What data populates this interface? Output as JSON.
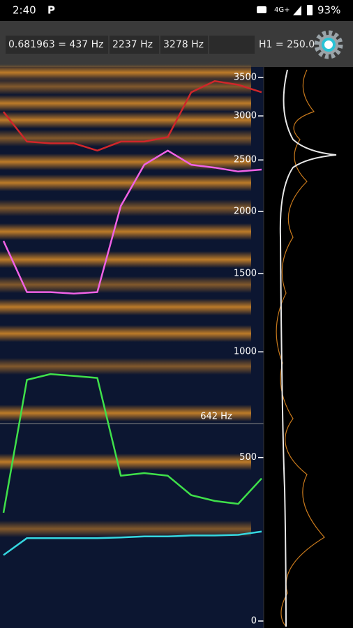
{
  "status_bar": {
    "time": "2:40",
    "app_icon": "P",
    "network": "4G+",
    "battery": "93%"
  },
  "toolbar": {
    "fields": [
      "0.681963 = 437 Hz",
      "2237 Hz",
      "3278 Hz",
      "H1 = 250.0"
    ]
  },
  "spectrogram": {
    "frequency_scale": "mel",
    "ylim": [
      0,
      3500
    ],
    "yticks": [
      0,
      500,
      1000,
      1500,
      2000,
      2500,
      3000,
      3500
    ],
    "cursor": {
      "value": 642,
      "label": "642 Hz"
    },
    "formant_tracks": [
      {
        "color": "#35d7e0",
        "values": [
          170,
          220,
          220,
          220,
          220,
          222,
          225,
          225,
          228,
          228,
          230,
          240
        ]
      },
      {
        "color": "#3fe04a",
        "values": [
          300,
          850,
          880,
          870,
          860,
          430,
          440,
          430,
          360,
          340,
          330,
          420
        ]
      },
      {
        "color": "#f062e6",
        "values": [
          1750,
          1370,
          1370,
          1360,
          1370,
          2050,
          2450,
          2600,
          2450,
          2420,
          2380,
          2400
        ]
      },
      {
        "color": "#d0262a",
        "values": [
          3050,
          2700,
          2680,
          2680,
          2600,
          2700,
          2700,
          2750,
          3300,
          3450,
          3400,
          3300
        ]
      }
    ]
  }
}
